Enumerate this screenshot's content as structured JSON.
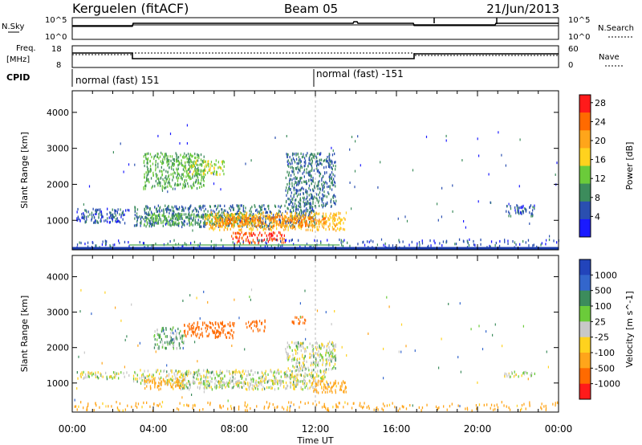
{
  "header": {
    "station": "Kerguelen (fitACF)",
    "beam": "Beam 05",
    "date": "21/Jun/2013"
  },
  "noise_panel": {
    "left_label": "N.Sky",
    "left_top_tick": "10^5",
    "left_bottom_tick": "10^0",
    "right_top_tick": "10^5",
    "right_bottom_tick": "10^0",
    "right_label": "N.Search"
  },
  "freq_panel": {
    "label_line1": "Freq.",
    "label_line2": "[MHz]",
    "top_tick": "18",
    "bottom_tick": "8",
    "right_top_tick": "60",
    "right_bottom_tick": "0",
    "right_label": "Nave"
  },
  "cpid": {
    "label": "CPID",
    "segments": [
      {
        "text": "normal (fast) 151",
        "start_hour": 0
      },
      {
        "text": "normal (fast) -151",
        "start_hour": 12
      }
    ]
  },
  "colors": {
    "frame": "#000000",
    "power": [
      "#1a1aff",
      "#2a4fb0",
      "#3c8c5c",
      "#6bcb3a",
      "#ffd21e",
      "#ffa51a",
      "#ff6a00",
      "#ff1a1a"
    ],
    "velocity": [
      "#2244bb",
      "#3366cc",
      "#3c8c5c",
      "#6bcb3a",
      "#c8c8c8",
      "#ffd21e",
      "#ffa51a",
      "#ff6a00",
      "#ff1a1a"
    ]
  },
  "chart_data": [
    {
      "type": "heatmap",
      "name": "power",
      "title": "",
      "xlabel": "",
      "ylabel": "Slant Range [km]",
      "xlim": [
        0,
        24
      ],
      "ylim": [
        180,
        4600
      ],
      "yticks": [
        1000,
        2000,
        3000,
        4000
      ],
      "colorbar": {
        "label": "Power [dB]",
        "ticks": [
          4,
          8,
          12,
          16,
          20,
          24,
          28
        ],
        "range": [
          0,
          30
        ]
      },
      "regions": [
        {
          "t0": 0.2,
          "t1": 2.8,
          "r0": 950,
          "r1": 1350,
          "value": 6
        },
        {
          "t0": 3.0,
          "t1": 12.0,
          "r0": 850,
          "r1": 1450,
          "value": 8
        },
        {
          "t0": 3.5,
          "t1": 9.0,
          "r0": 900,
          "r1": 1200,
          "value": 12
        },
        {
          "t0": 6.5,
          "t1": 13.5,
          "r0": 750,
          "r1": 1250,
          "value": 20
        },
        {
          "t0": 7.0,
          "t1": 12.5,
          "r0": 850,
          "r1": 1150,
          "value": 24
        },
        {
          "t0": 7.8,
          "t1": 10.5,
          "r0": 400,
          "r1": 700,
          "value": 28
        },
        {
          "t0": 3.5,
          "t1": 6.5,
          "r0": 1900,
          "r1": 2900,
          "value": 12
        },
        {
          "t0": 5.5,
          "t1": 7.5,
          "r0": 2300,
          "r1": 2700,
          "value": 16
        },
        {
          "t0": 10.5,
          "t1": 13.0,
          "r0": 1400,
          "r1": 2900,
          "value": 8
        },
        {
          "t0": 21.3,
          "t1": 22.8,
          "r0": 1150,
          "r1": 1450,
          "value": 6
        },
        {
          "t0": 0.0,
          "t1": 24.0,
          "r0": 250,
          "r1": 500,
          "value": 6
        }
      ]
    },
    {
      "type": "heatmap",
      "name": "velocity",
      "title": "",
      "xlabel": "Time UT",
      "ylabel": "Slant Range [km]",
      "xlim": [
        0,
        24
      ],
      "ylim": [
        180,
        4600
      ],
      "xticks": [
        "00:00",
        "04:00",
        "08:00",
        "12:00",
        "16:00",
        "20:00",
        "00:00"
      ],
      "yticks": [
        1000,
        2000,
        3000,
        4000
      ],
      "colorbar": {
        "label": "Velocity [m s^-1]",
        "ticks": [
          1000,
          500,
          100,
          25,
          -25,
          -100,
          -500,
          -1000
        ]
      },
      "regions": [
        {
          "t0": 0.2,
          "t1": 2.8,
          "r0": 1150,
          "r1": 1350,
          "value": 0
        },
        {
          "t0": 3.0,
          "t1": 12.5,
          "r0": 1000,
          "r1": 1400,
          "value": 0
        },
        {
          "t0": 5.0,
          "t1": 12.0,
          "r0": 850,
          "r1": 1100,
          "value": 0
        },
        {
          "t0": 10.5,
          "t1": 13.0,
          "r0": 1400,
          "r1": 2200,
          "value": 0
        },
        {
          "t0": 11.8,
          "t1": 13.5,
          "r0": 750,
          "r1": 1100,
          "value": -150
        },
        {
          "t0": 3.5,
          "t1": 5.5,
          "r0": 850,
          "r1": 1150,
          "value": -150
        },
        {
          "t0": 4.0,
          "t1": 5.5,
          "r0": 2000,
          "r1": 2600,
          "value": 50
        },
        {
          "t0": 5.5,
          "t1": 8.0,
          "r0": 2300,
          "r1": 2750,
          "value": -600
        },
        {
          "t0": 8.5,
          "t1": 9.5,
          "r0": 2500,
          "r1": 2800,
          "value": -600
        },
        {
          "t0": 10.8,
          "t1": 11.5,
          "r0": 2700,
          "r1": 2900,
          "value": -600
        },
        {
          "t0": 21.2,
          "t1": 22.8,
          "r0": 1200,
          "r1": 1350,
          "value": 0
        },
        {
          "t0": 0.0,
          "t1": 24.0,
          "r0": 250,
          "r1": 500,
          "value": -150
        }
      ]
    }
  ]
}
